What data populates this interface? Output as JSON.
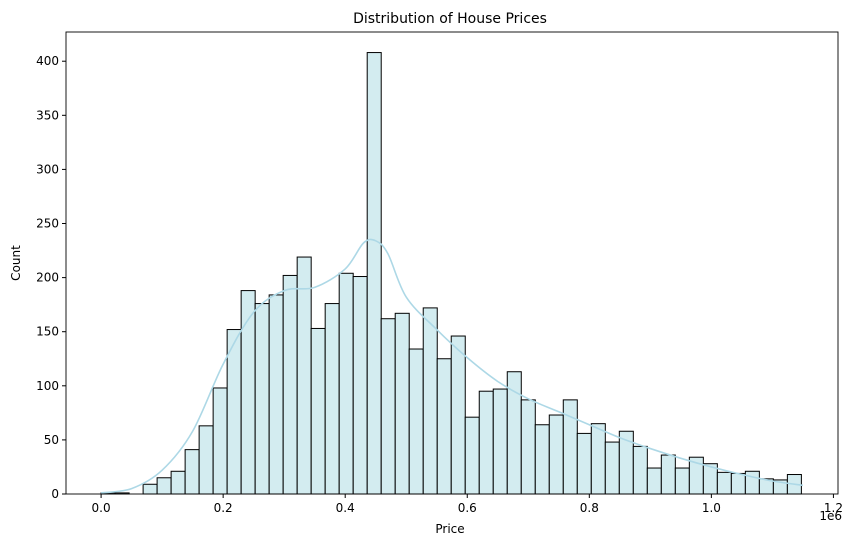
{
  "chart_data": {
    "type": "bar",
    "title": "Distribution of House Prices",
    "xlabel": "Price",
    "ylabel": "Count",
    "x_offset_label": "1e6",
    "xlim": [
      -0.0575,
      1.2075
    ],
    "ylim": [
      0,
      427
    ],
    "xticks": [
      0.0,
      0.2,
      0.4,
      0.6,
      0.8,
      1.0,
      1.2
    ],
    "xtick_labels": [
      "0.0",
      "0.2",
      "0.4",
      "0.6",
      "0.8",
      "1.0",
      "1.2"
    ],
    "yticks": [
      0,
      50,
      100,
      150,
      200,
      250,
      300,
      350,
      400
    ],
    "ytick_labels": [
      "0",
      "50",
      "100",
      "150",
      "200",
      "250",
      "300",
      "350",
      "400"
    ],
    "bin_width": 0.02295,
    "bins_start": [
      0.0,
      0.02295,
      0.0459,
      0.06885,
      0.0918,
      0.11475,
      0.1377,
      0.16065,
      0.1836,
      0.20655,
      0.2295,
      0.25245,
      0.2754,
      0.29835,
      0.3213,
      0.34425,
      0.3672,
      0.39015,
      0.4131,
      0.43605,
      0.459,
      0.48195,
      0.5049,
      0.52785,
      0.5508,
      0.57375,
      0.5967,
      0.61965,
      0.6426,
      0.66555,
      0.6885,
      0.71145,
      0.7344,
      0.75735,
      0.7803,
      0.80325,
      0.8262,
      0.84915,
      0.8721,
      0.89505,
      0.918,
      0.94095,
      0.9639,
      0.98685,
      1.0098,
      1.03275,
      1.0557,
      1.07865,
      1.1016,
      1.12455
    ],
    "values": [
      1,
      1,
      0,
      9,
      15,
      21,
      41,
      63,
      98,
      152,
      188,
      176,
      184,
      202,
      219,
      153,
      176,
      204,
      201,
      408,
      162,
      167,
      134,
      172,
      125,
      146,
      71,
      95,
      97,
      113,
      87,
      64,
      73,
      87,
      56,
      65,
      48,
      58,
      44,
      24,
      36,
      24,
      34,
      28,
      20,
      19,
      21,
      14,
      13,
      18
    ],
    "bar_fill": "#d3ecf0",
    "bar_edge": "#000000",
    "kde_color": "#add8e6",
    "kde": {
      "x": [
        0.0,
        0.05,
        0.1,
        0.15,
        0.2,
        0.25,
        0.3,
        0.35,
        0.4,
        0.43,
        0.45,
        0.47,
        0.5,
        0.55,
        0.6,
        0.65,
        0.7,
        0.75,
        0.8,
        0.85,
        0.9,
        0.95,
        1.0,
        1.05,
        1.1,
        1.15
      ],
      "y": [
        1,
        5,
        22,
        58,
        120,
        168,
        188,
        191,
        208,
        232,
        234,
        222,
        182,
        152,
        126,
        104,
        88,
        76,
        64,
        52,
        42,
        33,
        25,
        18,
        12,
        8
      ]
    }
  }
}
